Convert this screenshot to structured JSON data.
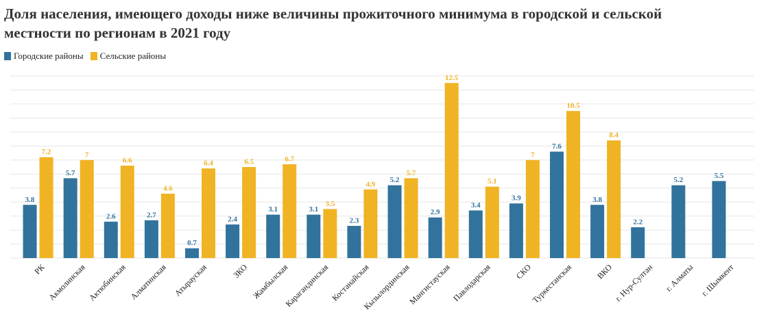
{
  "chart_data": {
    "type": "bar",
    "title": "Доля населения, имеющего доходы ниже величины прожиточного минимума в городской и сельской местности по регионам в 2021 году",
    "categories": [
      "РК",
      "Акмолинская",
      "Актюбинская",
      "Алматинская",
      "Атырауская",
      "ЗКО",
      "Жамбылская",
      "Карагандинская",
      "Костанайская",
      "Кызылординская",
      "Мангистауская",
      "Павлодарская",
      "СКО",
      "Туркестанская",
      "ВКО",
      "г. Нур-Султан",
      "г. Алматы",
      "г. Шымкент"
    ],
    "series": [
      {
        "name": "Городские районы",
        "color": "#31739c",
        "values": [
          3.8,
          5.7,
          2.6,
          2.7,
          0.7,
          2.4,
          3.1,
          3.1,
          2.3,
          5.2,
          2.9,
          3.4,
          3.9,
          7.6,
          3.8,
          2.2,
          5.2,
          5.5
        ]
      },
      {
        "name": "Сельские районы",
        "color": "#f0b323",
        "values": [
          7.2,
          7,
          6.6,
          4.6,
          6.4,
          6.5,
          6.7,
          3.5,
          4.9,
          5.7,
          12.5,
          5.1,
          7,
          10.5,
          8.4,
          null,
          null,
          null
        ]
      }
    ],
    "ylim": [
      0,
      13
    ],
    "yticks": [
      0,
      1,
      2,
      3,
      4,
      5,
      6,
      7,
      8,
      9,
      10,
      11,
      12,
      13
    ],
    "grid": true
  }
}
